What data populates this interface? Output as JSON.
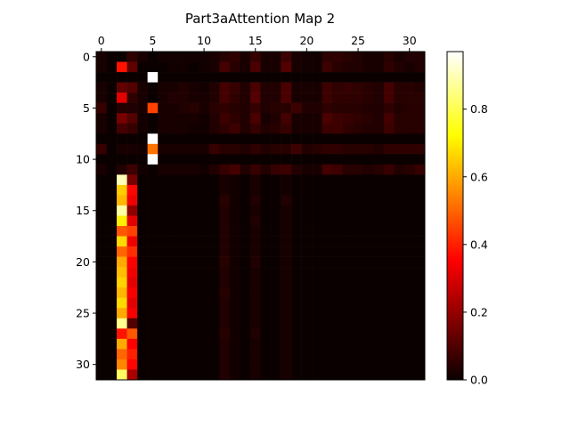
{
  "chart_data": {
    "type": "heatmap",
    "title": "Part3aAttention Map 2",
    "xlabel": "",
    "ylabel": "",
    "rows": 32,
    "cols": 32,
    "x_ticks": [
      0,
      5,
      10,
      15,
      20,
      25,
      30
    ],
    "y_ticks": [
      0,
      5,
      10,
      15,
      20,
      25,
      30
    ],
    "x_axis_position": "top",
    "colormap": "hot",
    "vmin": 0.0,
    "vmax": 0.97,
    "grid": false,
    "colorbar": {
      "ticks": [
        0.0,
        0.2,
        0.4,
        0.6,
        0.8
      ],
      "tick_labels": [
        "0.0",
        "0.2",
        "0.4",
        "0.6",
        "0.8"
      ]
    },
    "values": [
      [
        0.02,
        0.0,
        0.0,
        0.05,
        0.02,
        0.0,
        0.01,
        0.01,
        0.01,
        0.01,
        0.01,
        0.02,
        0.04,
        0.05,
        0.02,
        0.06,
        0.02,
        0.02,
        0.07,
        0.02,
        0.01,
        0.01,
        0.05,
        0.05,
        0.04,
        0.03,
        0.02,
        0.02,
        0.04,
        0.02,
        0.03,
        0.03
      ],
      [
        0.02,
        0.0,
        0.38,
        0.12,
        0.0,
        0.0,
        0.0,
        0.01,
        0.01,
        0.0,
        0.01,
        0.02,
        0.08,
        0.04,
        0.02,
        0.09,
        0.02,
        0.02,
        0.1,
        0.02,
        0.01,
        0.01,
        0.07,
        0.04,
        0.03,
        0.03,
        0.02,
        0.02,
        0.05,
        0.03,
        0.02,
        0.03
      ],
      [
        0.0,
        0.0,
        0.0,
        0.0,
        0.0,
        0.97,
        0.0,
        0.0,
        0.0,
        0.0,
        0.0,
        0.0,
        0.0,
        0.0,
        0.0,
        0.0,
        0.0,
        0.0,
        0.0,
        0.0,
        0.0,
        0.0,
        0.0,
        0.0,
        0.0,
        0.0,
        0.0,
        0.0,
        0.0,
        0.0,
        0.0,
        0.0
      ],
      [
        0.02,
        0.0,
        0.12,
        0.1,
        0.02,
        0.0,
        0.02,
        0.02,
        0.03,
        0.02,
        0.01,
        0.03,
        0.08,
        0.06,
        0.03,
        0.09,
        0.03,
        0.03,
        0.09,
        0.02,
        0.02,
        0.02,
        0.07,
        0.05,
        0.06,
        0.05,
        0.04,
        0.03,
        0.08,
        0.04,
        0.04,
        0.03
      ],
      [
        0.02,
        0.0,
        0.3,
        0.05,
        0.02,
        0.0,
        0.02,
        0.03,
        0.03,
        0.02,
        0.02,
        0.03,
        0.08,
        0.05,
        0.03,
        0.1,
        0.03,
        0.03,
        0.09,
        0.02,
        0.02,
        0.02,
        0.07,
        0.05,
        0.05,
        0.05,
        0.04,
        0.03,
        0.08,
        0.04,
        0.04,
        0.04
      ],
      [
        0.06,
        0.0,
        0.03,
        0.03,
        0.02,
        0.45,
        0.02,
        0.02,
        0.03,
        0.04,
        0.02,
        0.04,
        0.05,
        0.04,
        0.03,
        0.06,
        0.03,
        0.04,
        0.04,
        0.07,
        0.03,
        0.03,
        0.05,
        0.04,
        0.04,
        0.04,
        0.03,
        0.03,
        0.05,
        0.03,
        0.04,
        0.04
      ],
      [
        0.02,
        0.0,
        0.15,
        0.1,
        0.01,
        0.0,
        0.02,
        0.02,
        0.02,
        0.02,
        0.01,
        0.03,
        0.07,
        0.05,
        0.03,
        0.09,
        0.02,
        0.03,
        0.08,
        0.02,
        0.02,
        0.02,
        0.09,
        0.07,
        0.06,
        0.05,
        0.04,
        0.03,
        0.08,
        0.04,
        0.04,
        0.04
      ],
      [
        0.02,
        0.0,
        0.08,
        0.06,
        0.01,
        0.0,
        0.02,
        0.02,
        0.02,
        0.01,
        0.01,
        0.03,
        0.05,
        0.07,
        0.03,
        0.06,
        0.03,
        0.04,
        0.06,
        0.02,
        0.02,
        0.02,
        0.07,
        0.07,
        0.05,
        0.04,
        0.03,
        0.03,
        0.07,
        0.04,
        0.04,
        0.04
      ],
      [
        0.0,
        0.0,
        0.0,
        0.0,
        0.0,
        0.97,
        0.0,
        0.0,
        0.0,
        0.0,
        0.0,
        0.0,
        0.0,
        0.0,
        0.0,
        0.0,
        0.0,
        0.0,
        0.0,
        0.0,
        0.0,
        0.0,
        0.0,
        0.0,
        0.0,
        0.0,
        0.0,
        0.0,
        0.0,
        0.0,
        0.0,
        0.0
      ],
      [
        0.06,
        0.0,
        0.02,
        0.02,
        0.01,
        0.52,
        0.02,
        0.02,
        0.02,
        0.02,
        0.02,
        0.06,
        0.04,
        0.04,
        0.03,
        0.05,
        0.03,
        0.04,
        0.04,
        0.07,
        0.03,
        0.04,
        0.05,
        0.05,
        0.04,
        0.04,
        0.04,
        0.03,
        0.05,
        0.05,
        0.05,
        0.05
      ],
      [
        0.0,
        0.0,
        0.0,
        0.0,
        0.0,
        0.97,
        0.0,
        0.0,
        0.0,
        0.0,
        0.0,
        0.0,
        0.0,
        0.0,
        0.0,
        0.0,
        0.0,
        0.0,
        0.0,
        0.0,
        0.0,
        0.0,
        0.0,
        0.0,
        0.0,
        0.0,
        0.0,
        0.0,
        0.0,
        0.0,
        0.0,
        0.0
      ],
      [
        0.02,
        0.0,
        0.03,
        0.07,
        0.01,
        0.0,
        0.02,
        0.02,
        0.02,
        0.02,
        0.01,
        0.03,
        0.06,
        0.08,
        0.03,
        0.06,
        0.03,
        0.06,
        0.07,
        0.03,
        0.02,
        0.02,
        0.08,
        0.07,
        0.04,
        0.04,
        0.03,
        0.04,
        0.06,
        0.03,
        0.04,
        0.06
      ],
      [
        0.0,
        0.0,
        0.9,
        0.15,
        0.0,
        0.0,
        0.0,
        0.0,
        0.0,
        0.0,
        0.0,
        0.0,
        0.02,
        0.01,
        0.0,
        0.02,
        0.0,
        0.0,
        0.01,
        0.0,
        0.0,
        0.0,
        0.0,
        0.0,
        0.0,
        0.0,
        0.0,
        0.0,
        0.0,
        0.0,
        0.0,
        0.0
      ],
      [
        0.0,
        0.0,
        0.65,
        0.36,
        0.0,
        0.0,
        0.0,
        0.0,
        0.0,
        0.0,
        0.0,
        0.0,
        0.02,
        0.01,
        0.0,
        0.02,
        0.0,
        0.0,
        0.01,
        0.0,
        0.0,
        0.0,
        0.0,
        0.0,
        0.0,
        0.0,
        0.0,
        0.0,
        0.0,
        0.0,
        0.0,
        0.0
      ],
      [
        0.0,
        0.0,
        0.62,
        0.32,
        0.0,
        0.0,
        0.0,
        0.0,
        0.0,
        0.0,
        0.0,
        0.0,
        0.04,
        0.01,
        0.0,
        0.03,
        0.0,
        0.0,
        0.03,
        0.0,
        0.0,
        0.0,
        0.0,
        0.0,
        0.0,
        0.0,
        0.0,
        0.0,
        0.0,
        0.0,
        0.0,
        0.0
      ],
      [
        0.0,
        0.0,
        0.88,
        0.18,
        0.0,
        0.0,
        0.0,
        0.0,
        0.0,
        0.0,
        0.0,
        0.0,
        0.03,
        0.01,
        0.0,
        0.02,
        0.0,
        0.0,
        0.02,
        0.0,
        0.0,
        0.0,
        0.0,
        0.0,
        0.0,
        0.0,
        0.0,
        0.0,
        0.0,
        0.0,
        0.0,
        0.0
      ],
      [
        0.0,
        0.0,
        0.7,
        0.3,
        0.0,
        0.0,
        0.0,
        0.0,
        0.0,
        0.0,
        0.0,
        0.0,
        0.03,
        0.01,
        0.0,
        0.03,
        0.0,
        0.0,
        0.02,
        0.0,
        0.0,
        0.0,
        0.0,
        0.0,
        0.0,
        0.0,
        0.0,
        0.0,
        0.0,
        0.0,
        0.0,
        0.0
      ],
      [
        0.0,
        0.0,
        0.48,
        0.45,
        0.0,
        0.0,
        0.0,
        0.0,
        0.0,
        0.0,
        0.0,
        0.0,
        0.03,
        0.01,
        0.0,
        0.02,
        0.0,
        0.0,
        0.02,
        0.0,
        0.0,
        0.0,
        0.0,
        0.0,
        0.0,
        0.0,
        0.0,
        0.0,
        0.0,
        0.0,
        0.0,
        0.0
      ],
      [
        0.0,
        0.0,
        0.67,
        0.32,
        0.0,
        0.0,
        0.0,
        0.0,
        0.0,
        0.0,
        0.0,
        0.0,
        0.03,
        0.01,
        0.0,
        0.02,
        0.0,
        0.0,
        0.02,
        0.0,
        0.0,
        0.0,
        0.0,
        0.0,
        0.0,
        0.0,
        0.0,
        0.0,
        0.0,
        0.0,
        0.0,
        0.0
      ],
      [
        0.0,
        0.0,
        0.5,
        0.42,
        0.0,
        0.0,
        0.0,
        0.0,
        0.0,
        0.0,
        0.0,
        0.0,
        0.03,
        0.01,
        0.0,
        0.02,
        0.0,
        0.0,
        0.02,
        0.0,
        0.0,
        0.0,
        0.0,
        0.0,
        0.0,
        0.0,
        0.0,
        0.0,
        0.0,
        0.0,
        0.0,
        0.0
      ],
      [
        0.0,
        0.0,
        0.6,
        0.35,
        0.0,
        0.0,
        0.0,
        0.0,
        0.0,
        0.0,
        0.0,
        0.0,
        0.04,
        0.01,
        0.0,
        0.03,
        0.0,
        0.0,
        0.02,
        0.0,
        0.0,
        0.0,
        0.0,
        0.0,
        0.0,
        0.0,
        0.0,
        0.0,
        0.0,
        0.0,
        0.0,
        0.0
      ],
      [
        0.0,
        0.0,
        0.63,
        0.32,
        0.0,
        0.0,
        0.0,
        0.0,
        0.0,
        0.0,
        0.0,
        0.0,
        0.03,
        0.01,
        0.0,
        0.02,
        0.0,
        0.0,
        0.02,
        0.0,
        0.0,
        0.0,
        0.0,
        0.0,
        0.0,
        0.0,
        0.0,
        0.0,
        0.0,
        0.0,
        0.0,
        0.0
      ],
      [
        0.0,
        0.0,
        0.66,
        0.3,
        0.0,
        0.0,
        0.0,
        0.0,
        0.0,
        0.0,
        0.0,
        0.0,
        0.03,
        0.01,
        0.0,
        0.02,
        0.0,
        0.0,
        0.02,
        0.0,
        0.0,
        0.0,
        0.0,
        0.0,
        0.0,
        0.0,
        0.0,
        0.0,
        0.0,
        0.0,
        0.0,
        0.0
      ],
      [
        0.0,
        0.0,
        0.62,
        0.33,
        0.0,
        0.0,
        0.0,
        0.0,
        0.0,
        0.0,
        0.0,
        0.0,
        0.04,
        0.01,
        0.0,
        0.02,
        0.0,
        0.0,
        0.02,
        0.0,
        0.0,
        0.0,
        0.0,
        0.0,
        0.0,
        0.0,
        0.0,
        0.0,
        0.0,
        0.0,
        0.0,
        0.0
      ],
      [
        0.0,
        0.0,
        0.67,
        0.3,
        0.0,
        0.0,
        0.0,
        0.0,
        0.0,
        0.0,
        0.0,
        0.0,
        0.03,
        0.01,
        0.0,
        0.02,
        0.0,
        0.0,
        0.02,
        0.0,
        0.0,
        0.0,
        0.0,
        0.0,
        0.0,
        0.0,
        0.0,
        0.0,
        0.0,
        0.0,
        0.0,
        0.0
      ],
      [
        0.0,
        0.0,
        0.6,
        0.33,
        0.0,
        0.0,
        0.0,
        0.0,
        0.0,
        0.0,
        0.0,
        0.0,
        0.03,
        0.01,
        0.0,
        0.02,
        0.0,
        0.0,
        0.02,
        0.0,
        0.0,
        0.0,
        0.0,
        0.0,
        0.0,
        0.0,
        0.0,
        0.0,
        0.0,
        0.0,
        0.0,
        0.0
      ],
      [
        0.0,
        0.0,
        0.86,
        0.1,
        0.0,
        0.0,
        0.0,
        0.0,
        0.0,
        0.0,
        0.0,
        0.0,
        0.03,
        0.01,
        0.0,
        0.02,
        0.0,
        0.0,
        0.02,
        0.0,
        0.0,
        0.0,
        0.0,
        0.0,
        0.0,
        0.0,
        0.0,
        0.0,
        0.0,
        0.0,
        0.0,
        0.0
      ],
      [
        0.0,
        0.0,
        0.38,
        0.48,
        0.0,
        0.0,
        0.0,
        0.0,
        0.0,
        0.0,
        0.0,
        0.0,
        0.04,
        0.01,
        0.0,
        0.03,
        0.0,
        0.0,
        0.02,
        0.0,
        0.0,
        0.0,
        0.0,
        0.0,
        0.0,
        0.0,
        0.0,
        0.0,
        0.0,
        0.0,
        0.0,
        0.0
      ],
      [
        0.0,
        0.0,
        0.6,
        0.34,
        0.0,
        0.0,
        0.0,
        0.0,
        0.0,
        0.0,
        0.0,
        0.0,
        0.03,
        0.01,
        0.0,
        0.02,
        0.0,
        0.0,
        0.02,
        0.0,
        0.0,
        0.0,
        0.0,
        0.0,
        0.0,
        0.0,
        0.0,
        0.0,
        0.0,
        0.0,
        0.0,
        0.0
      ],
      [
        0.0,
        0.0,
        0.5,
        0.4,
        0.0,
        0.0,
        0.0,
        0.0,
        0.0,
        0.0,
        0.0,
        0.0,
        0.03,
        0.01,
        0.0,
        0.02,
        0.0,
        0.0,
        0.02,
        0.0,
        0.0,
        0.0,
        0.0,
        0.0,
        0.0,
        0.0,
        0.0,
        0.0,
        0.0,
        0.0,
        0.0,
        0.0
      ],
      [
        0.0,
        0.0,
        0.55,
        0.36,
        0.0,
        0.0,
        0.0,
        0.0,
        0.0,
        0.0,
        0.0,
        0.0,
        0.03,
        0.01,
        0.0,
        0.02,
        0.0,
        0.0,
        0.02,
        0.0,
        0.0,
        0.0,
        0.0,
        0.0,
        0.0,
        0.0,
        0.0,
        0.0,
        0.0,
        0.0,
        0.0,
        0.0
      ],
      [
        0.0,
        0.0,
        0.82,
        0.22,
        0.0,
        0.0,
        0.0,
        0.0,
        0.0,
        0.0,
        0.0,
        0.0,
        0.03,
        0.01,
        0.0,
        0.02,
        0.0,
        0.0,
        0.02,
        0.0,
        0.0,
        0.0,
        0.0,
        0.0,
        0.0,
        0.0,
        0.0,
        0.0,
        0.0,
        0.0,
        0.0,
        0.0
      ]
    ]
  }
}
